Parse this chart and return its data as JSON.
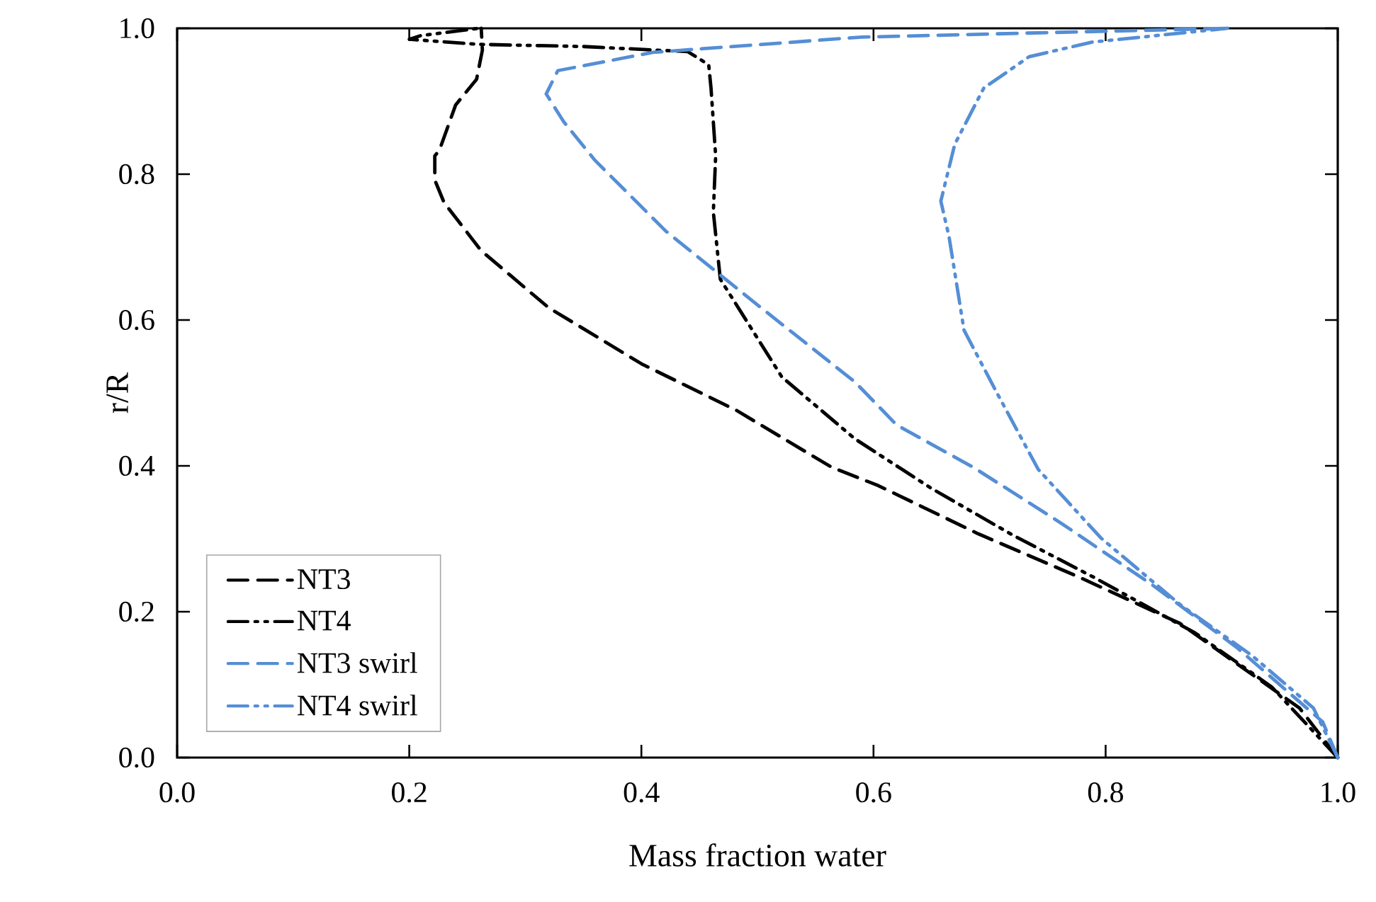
{
  "chart_data": {
    "type": "line",
    "xlabel": "Mass fraction water",
    "ylabel": "r/R",
    "xlim": [
      0,
      1
    ],
    "ylim": [
      0,
      1
    ],
    "xticks": [
      {
        "value": 0,
        "label": "0.0"
      },
      {
        "value": 0.2,
        "label": "0.2"
      },
      {
        "value": 0.4,
        "label": "0.4"
      },
      {
        "value": 0.6,
        "label": "0.6"
      },
      {
        "value": 0.8,
        "label": "0.8"
      },
      {
        "value": 1,
        "label": "1.0"
      }
    ],
    "yticks": [
      {
        "value": 0,
        "label": "0.0"
      },
      {
        "value": 0.2,
        "label": "0.2"
      },
      {
        "value": 0.4,
        "label": "0.4"
      },
      {
        "value": 0.6,
        "label": "0.6"
      },
      {
        "value": 0.8,
        "label": "0.8"
      },
      {
        "value": 1,
        "label": "1.0"
      }
    ],
    "grid": false,
    "legend": "bottom left",
    "series": [
      {
        "name": "NT3",
        "color": "#000000",
        "line_style": "dashed",
        "x": [
          1.0,
          0.967,
          0.864,
          0.775,
          0.69,
          0.604,
          0.564,
          0.482,
          0.4,
          0.32,
          0.262,
          0.23,
          0.222,
          0.222,
          0.226,
          0.24,
          0.258,
          0.263,
          0.262
        ],
        "values": [
          0.0,
          0.068,
          0.184,
          0.249,
          0.307,
          0.373,
          0.398,
          0.476,
          0.54,
          0.617,
          0.695,
          0.761,
          0.792,
          0.825,
          0.833,
          0.895,
          0.93,
          0.97,
          1.0
        ]
      },
      {
        "name": "NT4",
        "color": "#000000",
        "line_style": "dashdotdot",
        "x": [
          1.0,
          0.943,
          0.877,
          0.79,
          0.72,
          0.65,
          0.584,
          0.521,
          0.468,
          0.462,
          0.464,
          0.46,
          0.458,
          0.44,
          0.35,
          0.26,
          0.2,
          0.21,
          0.26
        ],
        "values": [
          0.0,
          0.097,
          0.171,
          0.247,
          0.305,
          0.369,
          0.437,
          0.522,
          0.656,
          0.748,
          0.825,
          0.918,
          0.95,
          0.968,
          0.975,
          0.978,
          0.985,
          0.99,
          1.0
        ]
      },
      {
        "name": "NT3 swirl",
        "color": "#558ed5",
        "line_style": "dashed",
        "x": [
          1.0,
          0.987,
          0.913,
          0.84,
          0.763,
          0.686,
          0.62,
          0.584,
          0.503,
          0.421,
          0.36,
          0.333,
          0.318,
          0.328,
          0.41,
          0.59,
          0.905
        ],
        "values": [
          0.0,
          0.049,
          0.151,
          0.237,
          0.32,
          0.398,
          0.456,
          0.515,
          0.617,
          0.722,
          0.819,
          0.872,
          0.91,
          0.942,
          0.967,
          0.988,
          1.0
        ]
      },
      {
        "name": "NT4 swirl",
        "color": "#558ed5",
        "line_style": "dashdotdot",
        "x": [
          1.0,
          0.979,
          0.926,
          0.864,
          0.796,
          0.742,
          0.706,
          0.678,
          0.665,
          0.658,
          0.67,
          0.695,
          0.734,
          0.788,
          0.905
        ],
        "values": [
          0.0,
          0.068,
          0.14,
          0.21,
          0.301,
          0.395,
          0.501,
          0.586,
          0.715,
          0.763,
          0.841,
          0.918,
          0.961,
          0.981,
          1.0
        ]
      }
    ]
  }
}
